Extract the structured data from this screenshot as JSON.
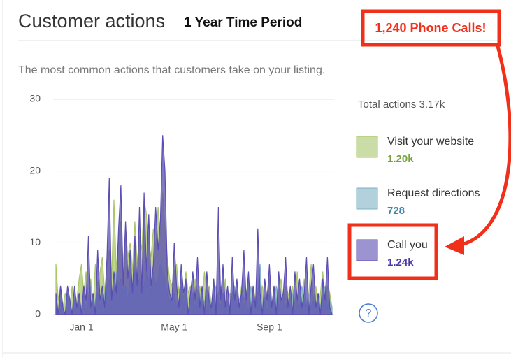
{
  "header": {
    "title": "Customer actions",
    "period": "1 Year Time Period",
    "subtitle": "The most common actions that customers take on your listing."
  },
  "annotations": {
    "callout": "1,240 Phone Calls!"
  },
  "legend": {
    "total": "Total actions 3.17k",
    "help": "?"
  },
  "chart_data": {
    "type": "area",
    "categories": [
      null,
      null,
      null,
      null,
      null,
      null,
      null,
      null,
      null,
      null,
      null,
      "Jan 1",
      null,
      null,
      null,
      null,
      null,
      null,
      null,
      null,
      null,
      null,
      null,
      null,
      null,
      null,
      null,
      null,
      null,
      null,
      null,
      null,
      null,
      null,
      null,
      null,
      null,
      null,
      null,
      null,
      null,
      null,
      null,
      null,
      null,
      null,
      null,
      null,
      null,
      null,
      null,
      "May 1",
      null,
      null,
      null,
      null,
      null,
      null,
      null,
      null,
      null,
      null,
      null,
      null,
      null,
      null,
      null,
      null,
      null,
      null,
      null,
      null,
      null,
      null,
      null,
      null,
      null,
      null,
      null,
      null,
      null,
      null,
      null,
      null,
      null,
      null,
      null,
      null,
      null,
      null,
      null,
      null,
      "Sep 1",
      null,
      null,
      null,
      null,
      null,
      null,
      null,
      null,
      null,
      null,
      null,
      null,
      null,
      null,
      null,
      null,
      null,
      null,
      null,
      null,
      null,
      null,
      null,
      null,
      null,
      null,
      null
    ],
    "series": [
      {
        "name": "Visit your website",
        "total_label": "1.20k",
        "color": "#a9c66a",
        "label_color": "#78a23a",
        "values": [
          7,
          2,
          4,
          1,
          3,
          2,
          1,
          4,
          0,
          2,
          5,
          7,
          3,
          6,
          2,
          5,
          1,
          7,
          4,
          6,
          8,
          3,
          7,
          9,
          5,
          16,
          6,
          11,
          13,
          7,
          12,
          8,
          10,
          6,
          13,
          7,
          11,
          9,
          16,
          14,
          10,
          8,
          12,
          9,
          15,
          11,
          17,
          12,
          8,
          5,
          4,
          6,
          7,
          3,
          5,
          2,
          6,
          3,
          4,
          2,
          5,
          3,
          4,
          2,
          6,
          3,
          4,
          1,
          5,
          2,
          3,
          4,
          2,
          5,
          1,
          3,
          2,
          4,
          3,
          1,
          4,
          2,
          3,
          5,
          1,
          4,
          2,
          3,
          2,
          4,
          2,
          3,
          5,
          1,
          4,
          2,
          3,
          5,
          2,
          4,
          3,
          2,
          4,
          1,
          6,
          3,
          2,
          5,
          1,
          3,
          7,
          2,
          4,
          1,
          3,
          6,
          2,
          4,
          3,
          1
        ]
      },
      {
        "name": "Request directions",
        "total_label": "728",
        "color": "#7fb3c5",
        "label_color": "#3f86a6",
        "values": [
          1,
          0,
          2,
          1,
          0,
          3,
          1,
          0,
          2,
          1,
          2,
          1,
          3,
          0,
          2,
          4,
          1,
          2,
          3,
          1,
          2,
          3,
          4,
          5,
          2,
          3,
          6,
          4,
          5,
          3,
          4,
          2,
          5,
          3,
          6,
          4,
          5,
          3,
          4,
          6,
          5,
          3,
          6,
          4,
          5,
          7,
          6,
          5,
          3,
          2,
          2,
          3,
          1,
          2,
          4,
          1,
          3,
          0,
          2,
          3,
          1,
          2,
          3,
          1,
          2,
          0,
          3,
          1,
          2,
          4,
          2,
          1,
          3,
          0,
          2,
          1,
          3,
          4,
          1,
          2,
          3,
          1,
          2,
          0,
          4,
          2,
          1,
          3,
          7,
          1,
          2,
          0,
          3,
          1,
          2,
          4,
          1,
          2,
          3,
          1,
          2,
          1,
          3,
          0,
          2,
          1,
          4,
          2,
          1,
          3,
          1,
          2,
          0,
          3,
          1,
          2,
          4,
          1,
          2,
          1
        ]
      },
      {
        "name": "Call you",
        "total_label": "1.24k",
        "color": "#5a4db3",
        "label_color": "#4a3ca6",
        "values": [
          3,
          0,
          4,
          1,
          0,
          4,
          2,
          0,
          4,
          1,
          3,
          0,
          4,
          2,
          11,
          1,
          3,
          0,
          9,
          2,
          4,
          1,
          8,
          19,
          2,
          6,
          3,
          12,
          18,
          4,
          13,
          5,
          9,
          3,
          11,
          4,
          15,
          3,
          17,
          6,
          14,
          4,
          7,
          15,
          9,
          13,
          25,
          20,
          6,
          3,
          2,
          10,
          4,
          1,
          7,
          3,
          5,
          0,
          3,
          6,
          2,
          8,
          1,
          4,
          0,
          6,
          2,
          1,
          5,
          0,
          15,
          2,
          7,
          1,
          4,
          0,
          8,
          2,
          5,
          1,
          3,
          9,
          2,
          6,
          0,
          4,
          1,
          12,
          3,
          0,
          5,
          2,
          7,
          1,
          4,
          0,
          6,
          2,
          3,
          8,
          1,
          4,
          0,
          6,
          2,
          5,
          1,
          3,
          8,
          0,
          4,
          7,
          1,
          3,
          0,
          5,
          2,
          8,
          1,
          0
        ]
      }
    ],
    "ylim": [
      0,
      30
    ],
    "yticks": [
      0,
      10,
      20,
      30
    ],
    "grid": true
  }
}
